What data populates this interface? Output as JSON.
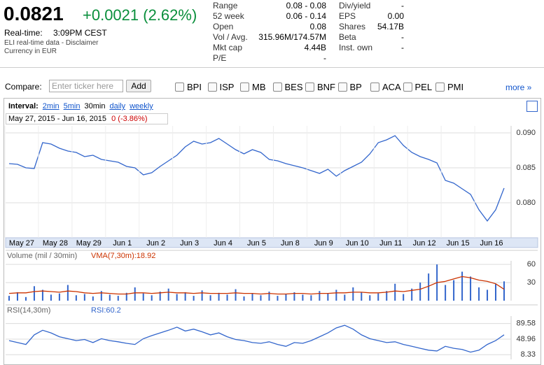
{
  "header": {
    "price": "0.0821",
    "change": "+0.0021 (2.62%)",
    "realtime_label": "Real-time:",
    "realtime_time": "3:09PM CEST",
    "disclaimer": "ELI real-time data - Disclaimer",
    "currency": "Currency in EUR"
  },
  "stats": {
    "col1": [
      {
        "label": "Range",
        "value": "0.08 - 0.08"
      },
      {
        "label": "52 week",
        "value": "0.06 - 0.14"
      },
      {
        "label": "Open",
        "value": "0.08"
      },
      {
        "label": "Vol / Avg.",
        "value": "315.96M/174.57M"
      },
      {
        "label": "Mkt cap",
        "value": "4.44B"
      },
      {
        "label": "P/E",
        "value": "-"
      }
    ],
    "col2": [
      {
        "label": "Div/yield",
        "value": "-"
      },
      {
        "label": "EPS",
        "value": "0.00"
      },
      {
        "label": "Shares",
        "value": "54.17B"
      },
      {
        "label": "Beta",
        "value": "-"
      },
      {
        "label": "Inst. own",
        "value": "-"
      }
    ]
  },
  "compare": {
    "label": "Compare:",
    "placeholder": "Enter ticker here",
    "button": "Add",
    "tickers": [
      "BPI",
      "ISP",
      "MB",
      "BES",
      "BNF",
      "BP",
      "ACA",
      "PEL",
      "PMI"
    ],
    "more": "more »"
  },
  "interval": {
    "label": "Interval:",
    "options": [
      "2min",
      "5min",
      "30min",
      "daily",
      "weekly"
    ],
    "active": 2
  },
  "range": {
    "from": "May 27, 2015",
    "to": "Jun 16, 2015",
    "change": "0 (-3.86%)"
  },
  "chart_data": [
    {
      "type": "line",
      "name": "price",
      "color": "#3366cc",
      "categories": [
        "May 27",
        null,
        null,
        null,
        "May 28",
        null,
        null,
        null,
        "May 29",
        null,
        null,
        null,
        "Jun 1",
        null,
        null,
        null,
        "Jun 2",
        null,
        null,
        null,
        "Jun 3",
        null,
        null,
        null,
        "Jun 4",
        null,
        null,
        null,
        "Jun 5",
        null,
        null,
        null,
        "Jun 8",
        null,
        null,
        null,
        "Jun 9",
        null,
        null,
        null,
        "Jun 10",
        null,
        null,
        null,
        "Jun 11",
        null,
        null,
        null,
        "Jun 12",
        null,
        null,
        null,
        "Jun 15",
        null,
        null,
        null,
        "Jun 16",
        null,
        null,
        null
      ],
      "values": [
        0.0856,
        0.0855,
        0.085,
        0.0849,
        0.0886,
        0.0884,
        0.0878,
        0.0874,
        0.0872,
        0.0866,
        0.0868,
        0.0862,
        0.086,
        0.0858,
        0.0852,
        0.085,
        0.084,
        0.0843,
        0.0852,
        0.086,
        0.0868,
        0.088,
        0.0888,
        0.0884,
        0.0886,
        0.0892,
        0.0884,
        0.0876,
        0.087,
        0.0876,
        0.0872,
        0.0862,
        0.086,
        0.0856,
        0.0853,
        0.085,
        0.0846,
        0.0842,
        0.0848,
        0.0838,
        0.0846,
        0.0852,
        0.0858,
        0.087,
        0.0886,
        0.089,
        0.0896,
        0.0882,
        0.0872,
        0.0866,
        0.0862,
        0.0857,
        0.0832,
        0.0828,
        0.082,
        0.0812,
        0.079,
        0.0774,
        0.079,
        0.0821
      ],
      "ylim": [
        0.075,
        0.091
      ],
      "yticks": [
        {
          "value": 0.08,
          "label": "0.080"
        },
        {
          "value": 0.085,
          "label": "0.085"
        },
        {
          "value": 0.09,
          "label": "0.090"
        }
      ],
      "grid": true
    },
    {
      "type": "bar",
      "title": "Volume (mil / 30min)",
      "color": "#3366cc",
      "values": [
        8,
        14,
        6,
        24,
        18,
        10,
        12,
        26,
        9,
        11,
        7,
        16,
        10,
        8,
        13,
        22,
        12,
        9,
        15,
        20,
        11,
        14,
        8,
        17,
        9,
        13,
        10,
        19,
        7,
        12,
        9,
        15,
        8,
        11,
        14,
        10,
        9,
        16,
        12,
        18,
        10,
        22,
        14,
        9,
        12,
        16,
        28,
        11,
        20,
        30,
        45,
        60,
        26,
        34,
        48,
        40,
        22,
        18,
        28,
        32
      ],
      "series": [
        {
          "name": "VMA(7,30m):18.92",
          "color": "#cc3300",
          "values": [
            12,
            13,
            13,
            15,
            16,
            15,
            14,
            16,
            15,
            13,
            12,
            13,
            12,
            11,
            11,
            13,
            13,
            12,
            13,
            14,
            13,
            13,
            12,
            13,
            12,
            12,
            12,
            13,
            12,
            12,
            11,
            12,
            11,
            11,
            12,
            12,
            11,
            12,
            12,
            13,
            13,
            14,
            14,
            13,
            13,
            14,
            16,
            15,
            17,
            19,
            24,
            30,
            32,
            36,
            40,
            38,
            34,
            32,
            28,
            18.92
          ]
        }
      ],
      "ylim": [
        0,
        66
      ],
      "yticks": [
        30,
        60
      ],
      "grid": true
    },
    {
      "type": "line",
      "title": "RSI(14,30m)",
      "name": "RSI:60.2",
      "color": "#3366cc",
      "values": [
        45,
        40,
        35,
        60,
        72,
        65,
        55,
        50,
        45,
        48,
        40,
        50,
        45,
        42,
        38,
        35,
        50,
        58,
        65,
        72,
        80,
        70,
        75,
        68,
        60,
        65,
        55,
        48,
        45,
        40,
        38,
        42,
        35,
        30,
        40,
        38,
        45,
        55,
        65,
        78,
        85,
        75,
        60,
        50,
        45,
        40,
        42,
        35,
        30,
        25,
        20,
        18,
        30,
        25,
        22,
        15,
        20,
        35,
        45,
        60.2
      ],
      "ylim": [
        -4,
        109
      ],
      "yticks": [
        8.33,
        48.96,
        89.58
      ],
      "grid": true
    }
  ]
}
